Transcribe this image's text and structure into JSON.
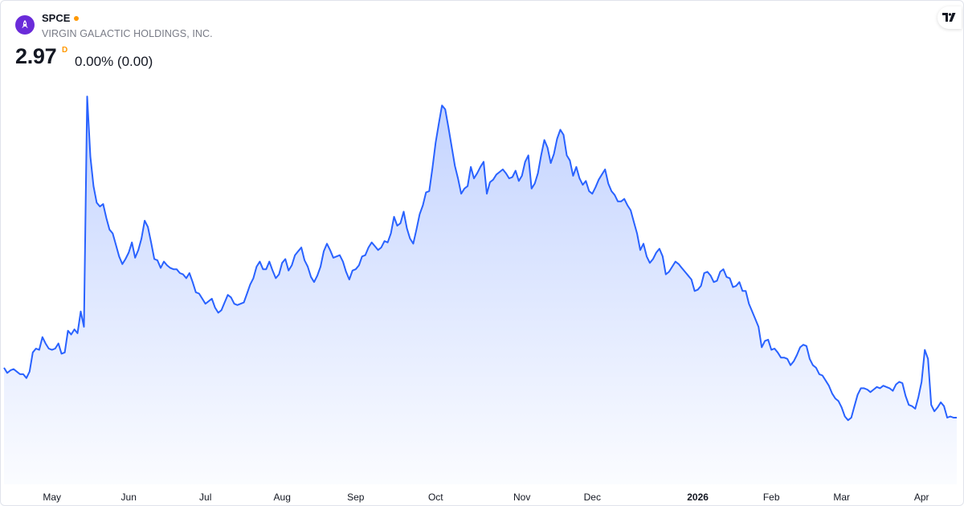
{
  "symbol": {
    "ticker": "SPCE",
    "company": "VIRGIN GALACTIC HOLDINGS, INC.",
    "price": "2.97",
    "interval_marker": "D",
    "change": "0.00% (0.00)",
    "market_status_color": "#ff9800"
  },
  "colors": {
    "line": "#2962ff",
    "area_top": "#2962ff",
    "logo_bg": "#6a2bd9",
    "interval_marker": "#ff9800"
  },
  "icons": {
    "company_logo": "rocket-icon",
    "brand": "tradingview-icon"
  },
  "chart_data": {
    "type": "area",
    "title": "",
    "xlabel": "",
    "ylabel": "",
    "grid": false,
    "x_tick_labels": [
      "May",
      "Jun",
      "Jul",
      "Aug",
      "Sep",
      "Oct",
      "Nov",
      "Dec",
      "2026",
      "Feb",
      "Mar",
      "Apr"
    ],
    "x_tick_index": [
      15,
      39,
      63,
      87,
      110,
      135,
      162,
      184,
      217,
      240,
      262,
      287
    ],
    "ylim": [
      2.6,
      5.6
    ],
    "series": [
      {
        "values": [
          3.36,
          3.32,
          3.34,
          3.35,
          3.33,
          3.31,
          3.31,
          3.28,
          3.33,
          3.48,
          3.51,
          3.5,
          3.6,
          3.55,
          3.51,
          3.5,
          3.51,
          3.55,
          3.47,
          3.48,
          3.65,
          3.62,
          3.66,
          3.63,
          3.8,
          3.68,
          5.48,
          5.01,
          4.78,
          4.65,
          4.62,
          4.64,
          4.53,
          4.44,
          4.41,
          4.32,
          4.23,
          4.17,
          4.21,
          4.26,
          4.34,
          4.22,
          4.28,
          4.37,
          4.51,
          4.46,
          4.34,
          4.21,
          4.2,
          4.14,
          4.19,
          4.16,
          4.14,
          4.13,
          4.13,
          4.1,
          4.09,
          4.06,
          4.1,
          4.03,
          3.95,
          3.94,
          3.9,
          3.86,
          3.88,
          3.9,
          3.83,
          3.79,
          3.81,
          3.87,
          3.93,
          3.91,
          3.86,
          3.85,
          3.86,
          3.87,
          3.94,
          4.01,
          4.06,
          4.15,
          4.19,
          4.13,
          4.13,
          4.19,
          4.12,
          4.06,
          4.09,
          4.18,
          4.21,
          4.12,
          4.16,
          4.24,
          4.27,
          4.3,
          4.2,
          4.15,
          4.07,
          4.03,
          4.08,
          4.15,
          4.27,
          4.33,
          4.28,
          4.22,
          4.23,
          4.24,
          4.19,
          4.11,
          4.05,
          4.12,
          4.13,
          4.16,
          4.23,
          4.24,
          4.3,
          4.34,
          4.31,
          4.28,
          4.3,
          4.35,
          4.34,
          4.41,
          4.54,
          4.47,
          4.49,
          4.58,
          4.45,
          4.37,
          4.33,
          4.44,
          4.56,
          4.63,
          4.73,
          4.74,
          4.92,
          5.12,
          5.27,
          5.41,
          5.38,
          5.24,
          5.09,
          4.94,
          4.84,
          4.72,
          4.76,
          4.78,
          4.93,
          4.84,
          4.88,
          4.93,
          4.97,
          4.72,
          4.81,
          4.83,
          4.87,
          4.89,
          4.91,
          4.88,
          4.84,
          4.85,
          4.9,
          4.82,
          4.86,
          4.97,
          5.02,
          4.76,
          4.8,
          4.88,
          5.02,
          5.14,
          5.08,
          4.96,
          5.03,
          5.15,
          5.22,
          5.18,
          5.02,
          4.98,
          4.86,
          4.93,
          4.84,
          4.79,
          4.82,
          4.74,
          4.72,
          4.77,
          4.83,
          4.87,
          4.91,
          4.8,
          4.74,
          4.71,
          4.66,
          4.66,
          4.68,
          4.63,
          4.59,
          4.5,
          4.41,
          4.28,
          4.33,
          4.23,
          4.18,
          4.21,
          4.26,
          4.29,
          4.23,
          4.09,
          4.11,
          4.15,
          4.19,
          4.17,
          4.14,
          4.11,
          4.08,
          4.05,
          3.96,
          3.97,
          4.0,
          4.1,
          4.11,
          4.08,
          4.03,
          4.04,
          4.11,
          4.13,
          4.07,
          4.06,
          3.99,
          4.0,
          4.03,
          3.96,
          3.96,
          3.86,
          3.8,
          3.74,
          3.68,
          3.52,
          3.57,
          3.58,
          3.5,
          3.51,
          3.48,
          3.44,
          3.44,
          3.43,
          3.38,
          3.41,
          3.46,
          3.52,
          3.54,
          3.53,
          3.43,
          3.38,
          3.36,
          3.31,
          3.3,
          3.26,
          3.22,
          3.16,
          3.12,
          3.1,
          3.05,
          2.98,
          2.95,
          2.97,
          3.06,
          3.15,
          3.2,
          3.2,
          3.19,
          3.17,
          3.19,
          3.21,
          3.2,
          3.22,
          3.21,
          3.2,
          3.18,
          3.23,
          3.25,
          3.24,
          3.14,
          3.07,
          3.06,
          3.04,
          3.13,
          3.25,
          3.5,
          3.43,
          3.07,
          3.02,
          3.05,
          3.09,
          3.06,
          2.97,
          2.98,
          2.97,
          2.97
        ]
      }
    ]
  }
}
